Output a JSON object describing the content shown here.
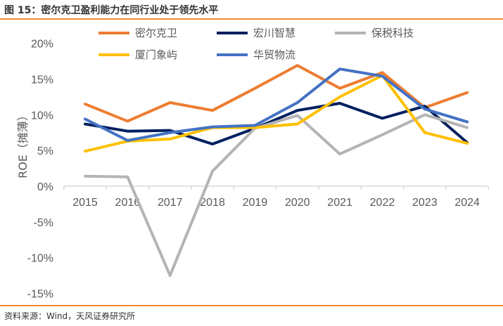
{
  "title": "图 15：密尔克卫盈利能力在同行业处于领先水平",
  "source": "资料来源：Wind，天风证券研究所",
  "chart_data": {
    "type": "line",
    "title": "",
    "xlabel": "",
    "ylabel": "ROE（摊薄）",
    "ylim": [
      -15,
      20
    ],
    "yticks": [
      "20%",
      "15%",
      "10%",
      "5%",
      "0%",
      "-5%",
      "-10%",
      "-15%"
    ],
    "ytick_values": [
      20,
      15,
      10,
      5,
      0,
      -5,
      -10,
      -15
    ],
    "grid": false,
    "legend": "top",
    "categories": [
      "2015",
      "2016",
      "2017",
      "2018",
      "2019",
      "2020",
      "2021",
      "2022",
      "2023",
      "2024"
    ],
    "series": [
      {
        "name": "密尔克卫",
        "color": "#ed7d31",
        "values": [
          11.5,
          9.1,
          11.7,
          10.6,
          13.7,
          16.9,
          13.7,
          15.9,
          11.0,
          13.1
        ]
      },
      {
        "name": "宏川智慧",
        "color": "#002060",
        "values": [
          8.7,
          7.7,
          7.8,
          5.9,
          8.1,
          10.6,
          11.6,
          9.5,
          11.2,
          6.1
        ]
      },
      {
        "name": "保税科技",
        "color": "#b4b4b4",
        "values": [
          1.4,
          1.3,
          -12.5,
          2.1,
          8.1,
          9.9,
          4.5,
          7.2,
          10.0,
          8.2
        ]
      },
      {
        "name": "厦门象屿",
        "color": "#ffc000",
        "values": [
          4.9,
          6.3,
          6.6,
          8.2,
          8.2,
          8.7,
          12.5,
          15.5,
          7.5,
          6.0
        ]
      },
      {
        "name": "华贸物流",
        "color": "#4472c4",
        "values": [
          9.4,
          6.4,
          7.5,
          8.3,
          8.5,
          11.7,
          16.4,
          15.4,
          10.8,
          9.0
        ]
      }
    ]
  }
}
